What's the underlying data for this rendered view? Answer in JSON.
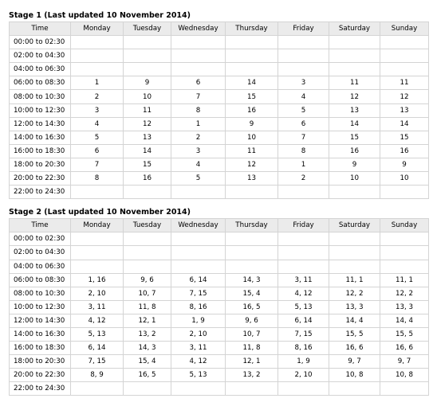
{
  "columns": [
    "Time",
    "Monday",
    "Tuesday",
    "Wednesday",
    "Thursday",
    "Friday",
    "Saturday",
    "Sunday"
  ],
  "stage1": {
    "title": "Stage 1 (Last updated 10 November 2014)",
    "rows": [
      [
        "00:00 to 02:30",
        "",
        "",
        "",
        "",
        "",
        "",
        ""
      ],
      [
        "02:00 to 04:30",
        "",
        "",
        "",
        "",
        "",
        "",
        ""
      ],
      [
        "04:00 to 06:30",
        "",
        "",
        "",
        "",
        "",
        "",
        ""
      ],
      [
        "06:00 to 08:30",
        "1",
        "9",
        "6",
        "14",
        "3",
        "11",
        "11"
      ],
      [
        "08:00 to 10:30",
        "2",
        "10",
        "7",
        "15",
        "4",
        "12",
        "12"
      ],
      [
        "10:00 to 12:30",
        "3",
        "11",
        "8",
        "16",
        "5",
        "13",
        "13"
      ],
      [
        "12:00 to 14:30",
        "4",
        "12",
        "1",
        "9",
        "6",
        "14",
        "14"
      ],
      [
        "14:00 to 16:30",
        "5",
        "13",
        "2",
        "10",
        "7",
        "15",
        "15"
      ],
      [
        "16:00 to 18:30",
        "6",
        "14",
        "3",
        "11",
        "8",
        "16",
        "16"
      ],
      [
        "18:00 to 20:30",
        "7",
        "15",
        "4",
        "12",
        "1",
        "9",
        "9"
      ],
      [
        "20:00 to 22:30",
        "8",
        "16",
        "5",
        "13",
        "2",
        "10",
        "10"
      ],
      [
        "22:00 to 24:30",
        "",
        "",
        "",
        "",
        "",
        "",
        ""
      ]
    ]
  },
  "stage2": {
    "title": "Stage 2 (Last updated 10 November 2014)",
    "rows": [
      [
        "00:00 to 02:30",
        "",
        "",
        "",
        "",
        "",
        "",
        ""
      ],
      [
        "02:00 to 04:30",
        "",
        "",
        "",
        "",
        "",
        "",
        ""
      ],
      [
        "04:00 to 06:30",
        "",
        "",
        "",
        "",
        "",
        "",
        ""
      ],
      [
        "06:00 to 08:30",
        "1, 16",
        "9, 6",
        "6, 14",
        "14, 3",
        "3, 11",
        "11, 1",
        "11, 1"
      ],
      [
        "08:00 to 10:30",
        "2, 10",
        "10, 7",
        "7, 15",
        "15, 4",
        "4, 12",
        "12, 2",
        "12, 2"
      ],
      [
        "10:00 to 12:30",
        "3, 11",
        "11, 8",
        "8, 16",
        "16, 5",
        "5, 13",
        "13, 3",
        "13, 3"
      ],
      [
        "12:00 to 14:30",
        "4, 12",
        "12, 1",
        "1, 9",
        "9, 6",
        "6, 14",
        "14, 4",
        "14, 4"
      ],
      [
        "14:00 to 16:30",
        "5, 13",
        "13, 2",
        "2, 10",
        "10, 7",
        "7, 15",
        "15, 5",
        "15, 5"
      ],
      [
        "16:00 to 18:30",
        "6, 14",
        "14, 3",
        "3, 11",
        "11, 8",
        "8, 16",
        "16, 6",
        "16, 6"
      ],
      [
        "18:00 to 20:30",
        "7, 15",
        "15, 4",
        "4, 12",
        "12, 1",
        "1, 9",
        "9, 7",
        "9, 7"
      ],
      [
        "20:00 to 22:30",
        "8, 9",
        "16, 5",
        "5, 13",
        "13, 2",
        "2, 10",
        "10, 8",
        "10, 8"
      ],
      [
        "22:00 to 24:30",
        "",
        "",
        "",
        "",
        "",
        "",
        ""
      ]
    ]
  }
}
